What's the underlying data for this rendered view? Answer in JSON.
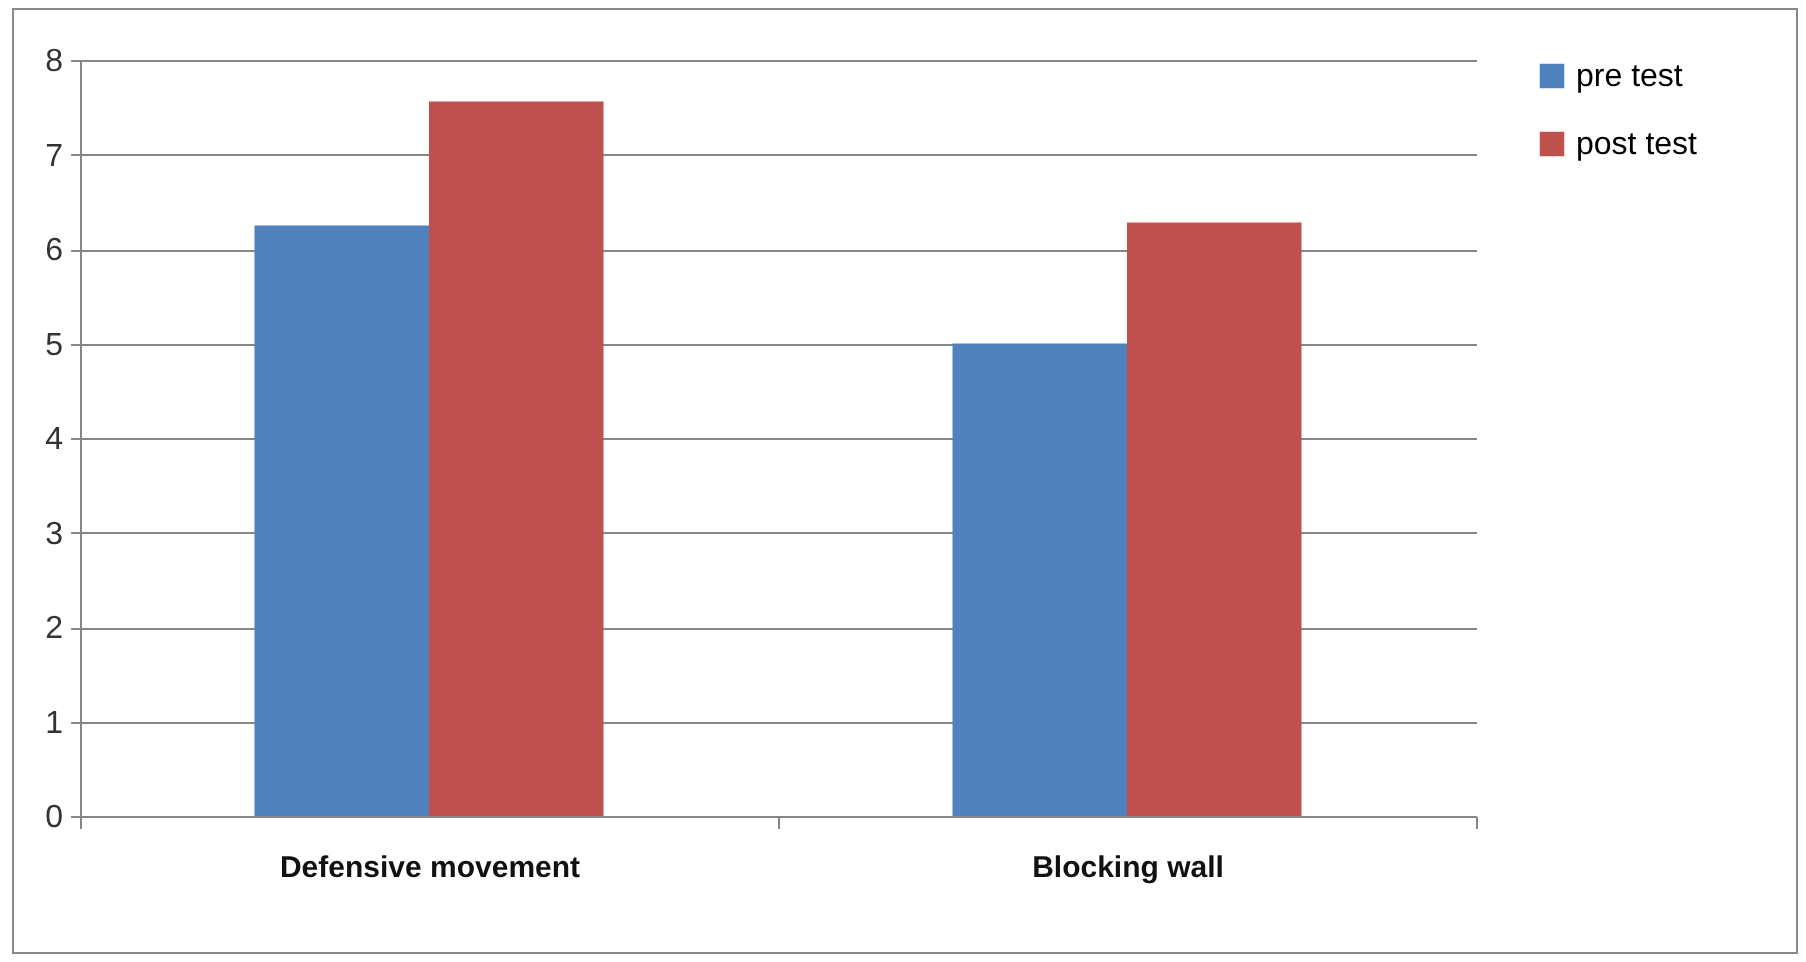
{
  "chart_data": {
    "type": "bar",
    "categories": [
      "Defensive movement",
      "Blocking wall"
    ],
    "series": [
      {
        "name": "pre test",
        "color": "#4f81bd",
        "values": [
          6.25,
          5.0
        ]
      },
      {
        "name": "post test",
        "color": "#c0504d",
        "values": [
          7.56,
          6.28
        ]
      }
    ],
    "ylim": [
      0,
      8
    ],
    "yticks": [
      0,
      1,
      2,
      3,
      4,
      5,
      6,
      7,
      8
    ],
    "grid": "y",
    "legend": "right"
  }
}
